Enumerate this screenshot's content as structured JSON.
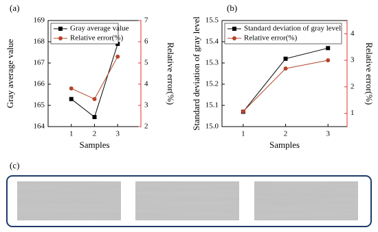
{
  "chart_data": [
    {
      "type": "line",
      "panel": "(a)",
      "xlabel": "Samples",
      "ylabel": "Gray average value",
      "y2label": "Relative error(%)",
      "categories": [
        "1",
        "2",
        "3"
      ],
      "ylim": [
        164,
        169
      ],
      "yticks": [
        164,
        165,
        166,
        167,
        168,
        169
      ],
      "y2lim": [
        2,
        7
      ],
      "y2ticks": [
        2,
        3,
        4,
        5,
        6,
        7
      ],
      "y2color": "#e0302c",
      "series": [
        {
          "name": "Gray average value",
          "color": "#000000",
          "marker": "square",
          "values": [
            165.3,
            164.45,
            167.9
          ]
        },
        {
          "name": "Relative error(%)",
          "color": "#b5452b",
          "marker": "circle",
          "axis": "y2",
          "values": [
            3.8,
            3.3,
            5.3
          ]
        }
      ]
    },
    {
      "type": "line",
      "panel": "(b)",
      "xlabel": "Samples",
      "ylabel": "Standard deviation of gray level",
      "y2label": "Relative error(%)",
      "categories": [
        "1",
        "2",
        "3"
      ],
      "ylim": [
        15.0,
        15.5
      ],
      "yticks": [
        {
          "value": 15.0,
          "label": "15.0"
        },
        15.1,
        15.2,
        15.3,
        15.4,
        15.5
      ],
      "y2lim": [
        0.5,
        4.5
      ],
      "y2ticks": [
        1,
        2,
        3,
        4
      ],
      "y2color": "#e0302c",
      "series": [
        {
          "name": "Standard deviation of gray level",
          "color": "#000000",
          "marker": "square",
          "values": [
            15.07,
            15.32,
            15.37
          ]
        },
        {
          "name": "Relative error(%)",
          "color": "#b5452b",
          "marker": "circle",
          "axis": "y2",
          "values": [
            1.07,
            2.69,
            3.0
          ]
        }
      ]
    }
  ],
  "images_panel": {
    "label": "(c)"
  }
}
